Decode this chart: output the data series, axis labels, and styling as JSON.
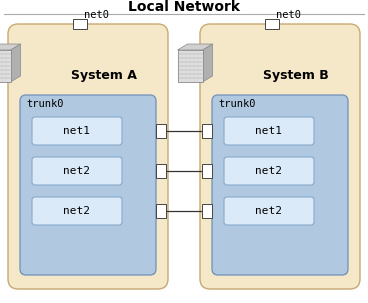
{
  "title": "Local Network",
  "title_fontsize": 10,
  "title_fontweight": "bold",
  "background_color": "#ffffff",
  "system_a_label": "System A",
  "system_b_label": "System B",
  "trunk_label": "trunk0",
  "net0_label": "net0",
  "net_labels": [
    "net1",
    "net2",
    "net2"
  ],
  "system_box_color": "#f5e8c8",
  "system_box_edge": "#c8a870",
  "trunk_box_color": "#b0c8e0",
  "trunk_box_edge": "#7090b8",
  "net_box_color": "#daeaf8",
  "net_box_edge": "#8aaacc",
  "port_color": "#ffffff",
  "port_edge": "#444444",
  "line_color": "#333333",
  "text_color": "#000000",
  "net_font": 8,
  "label_font": 9,
  "trunk_font": 7.5
}
